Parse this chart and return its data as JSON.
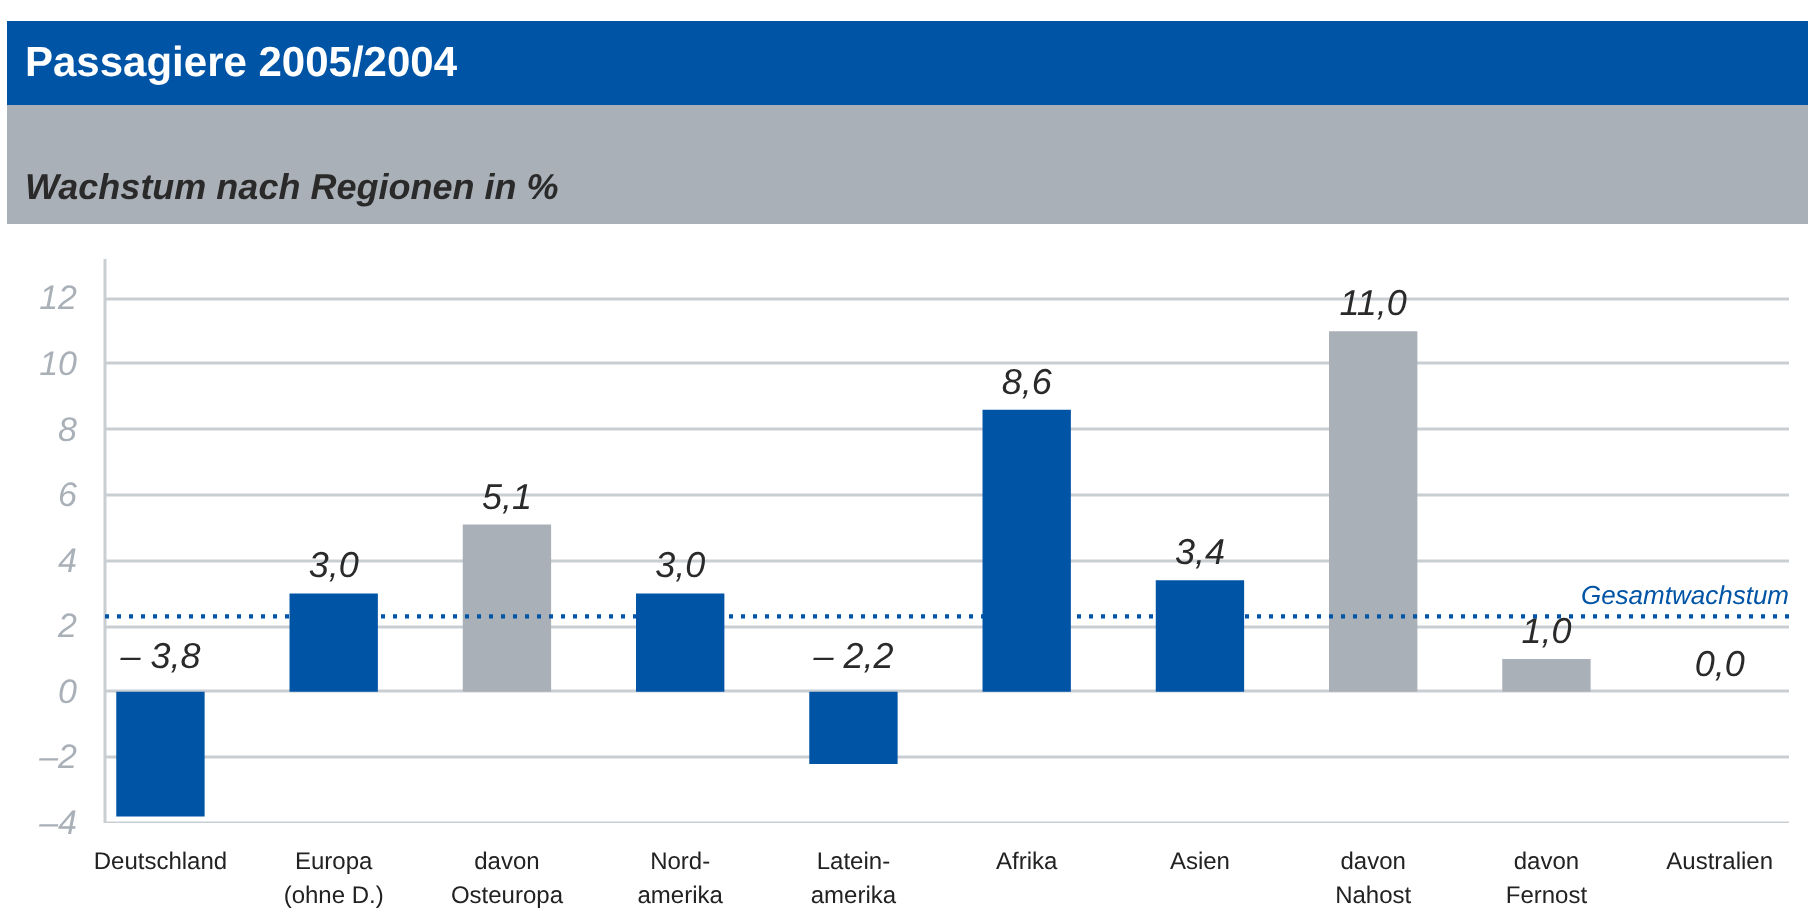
{
  "chart_data": {
    "type": "bar",
    "title": "Passagiere 2005/2004",
    "subtitle": "Wachstum nach Regionen in %",
    "categories": [
      "Deutschland",
      "Europa\n(ohne D.)",
      "davon\nOsteuropa",
      "Nord-\namerika",
      "Latein-\namerika",
      "Afrika",
      "Asien",
      "davon\nNahost",
      "davon\nFernost",
      "Australien"
    ],
    "values": [
      -3.8,
      3.0,
      5.1,
      3.0,
      -2.2,
      8.6,
      3.4,
      11.0,
      1.0,
      0.0
    ],
    "colors": [
      "#0054a6",
      "#0054a6",
      "#a9b0b7",
      "#0054a6",
      "#0054a6",
      "#0054a6",
      "#0054a6",
      "#a9b0b7",
      "#a9b0b7",
      "#0054a6"
    ],
    "value_labels": [
      "– 3,8",
      "3,0",
      "5,1",
      "3,0",
      "– 2,2",
      "8,6",
      "3,4",
      "11,0",
      "1,0",
      "0,0"
    ],
    "ylim": [
      -4,
      13.2
    ],
    "yticks": [
      {
        "value": -4,
        "label": "–4"
      },
      {
        "value": -2,
        "label": "–2"
      },
      0,
      2,
      4,
      6,
      8,
      10,
      12
    ],
    "grid": "y",
    "ref_lines": [
      {
        "axis": "y",
        "value": 2.3,
        "label": "Gesamtwachstum",
        "color": "#0054a6",
        "line_style": "dotted"
      }
    ]
  }
}
